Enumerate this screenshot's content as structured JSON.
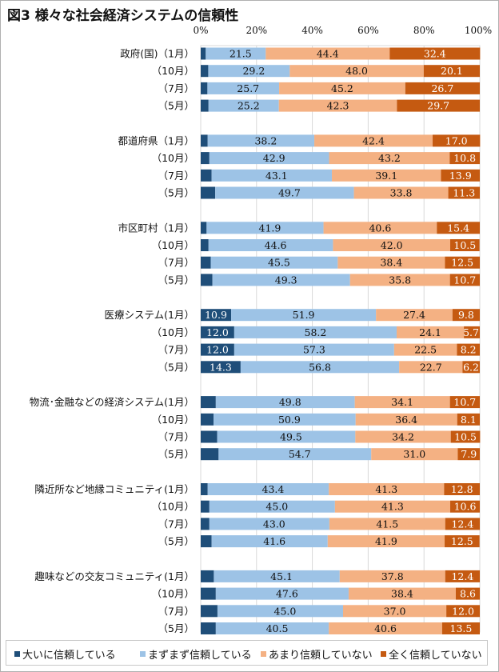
{
  "chart_data": {
    "type": "bar",
    "orientation": "horizontal-stacked-100",
    "title": "図3 様々な社会経済システムの信頼性",
    "xlim": [
      0,
      100
    ],
    "x_ticks": [
      "0%",
      "20%",
      "40%",
      "60%",
      "80%",
      "100%"
    ],
    "x_tick_values": [
      0,
      20,
      40,
      60,
      80,
      100
    ],
    "grid": true,
    "legend_position": "bottom",
    "series": [
      {
        "name": "大いに信頼している",
        "color": "#1f4e79"
      },
      {
        "name": "まずまず信頼している",
        "color": "#9dc3e6"
      },
      {
        "name": "あまり信頼していない",
        "color": "#f4b183"
      },
      {
        "name": "全く信頼していない",
        "color": "#c55a11"
      }
    ],
    "groups": [
      {
        "name": "政府(国)",
        "rows": [
          {
            "label": "政府(国)（1月）",
            "values": [
              1.8,
              21.5,
              44.4,
              32.4
            ]
          },
          {
            "label": "（10月）",
            "values": [
              2.7,
              29.2,
              48.0,
              20.1
            ]
          },
          {
            "label": "（7月）",
            "values": [
              2.4,
              25.7,
              45.2,
              26.7
            ]
          },
          {
            "label": "（5月）",
            "values": [
              2.8,
              25.2,
              42.3,
              29.7
            ]
          }
        ]
      },
      {
        "name": "都道府県",
        "rows": [
          {
            "label": "都道府県（1月）",
            "values": [
              2.5,
              38.2,
              42.4,
              17.0
            ]
          },
          {
            "label": "（10月）",
            "values": [
              3.1,
              42.9,
              43.2,
              10.8
            ]
          },
          {
            "label": "（7月）",
            "values": [
              3.9,
              43.1,
              39.1,
              13.9
            ]
          },
          {
            "label": "（5月）",
            "values": [
              5.2,
              49.7,
              33.8,
              11.3
            ]
          }
        ]
      },
      {
        "name": "市区町村",
        "rows": [
          {
            "label": "市区町村（1月）",
            "values": [
              2.1,
              41.9,
              40.6,
              15.4
            ]
          },
          {
            "label": "（10月）",
            "values": [
              2.8,
              44.6,
              42.0,
              10.5
            ]
          },
          {
            "label": "（7月）",
            "values": [
              3.6,
              45.5,
              38.4,
              12.5
            ]
          },
          {
            "label": "（5月）",
            "values": [
              4.2,
              49.3,
              35.8,
              10.7
            ]
          }
        ]
      },
      {
        "name": "医療システム",
        "rows": [
          {
            "label": "医療システム(1月）",
            "values": [
              10.9,
              51.9,
              27.4,
              9.8
            ]
          },
          {
            "label": "（10月）",
            "values": [
              12.0,
              58.2,
              24.1,
              5.7
            ]
          },
          {
            "label": "（7月）",
            "values": [
              12.0,
              57.3,
              22.5,
              8.2
            ]
          },
          {
            "label": "（5月）",
            "values": [
              14.3,
              56.8,
              22.7,
              6.2
            ]
          }
        ]
      },
      {
        "name": "物流･金融などの経済システム",
        "rows": [
          {
            "label": "物流･金融などの経済システム(1月）",
            "values": [
              5.4,
              49.8,
              34.1,
              10.7
            ]
          },
          {
            "label": "（10月）",
            "values": [
              4.6,
              50.9,
              36.4,
              8.1
            ]
          },
          {
            "label": "（7月）",
            "values": [
              5.9,
              49.5,
              34.2,
              10.5
            ]
          },
          {
            "label": "（5月）",
            "values": [
              6.4,
              54.7,
              31.0,
              7.9
            ]
          }
        ]
      },
      {
        "name": "隣近所など地縁コミュニティ",
        "rows": [
          {
            "label": "隣近所など地縁コミュニティ(1月）",
            "values": [
              2.5,
              43.4,
              41.3,
              12.8
            ]
          },
          {
            "label": "（10月）",
            "values": [
              3.1,
              45.0,
              41.3,
              10.6
            ]
          },
          {
            "label": "（7月）",
            "values": [
              3.1,
              43.0,
              41.5,
              12.4
            ]
          },
          {
            "label": "（5月）",
            "values": [
              3.9,
              41.6,
              41.9,
              12.5
            ]
          }
        ]
      },
      {
        "name": "趣味などの交友コミュニティ",
        "rows": [
          {
            "label": "趣味などの交友コミュニティ(1月）",
            "values": [
              4.7,
              45.1,
              37.8,
              12.4
            ]
          },
          {
            "label": "（10月）",
            "values": [
              5.4,
              47.6,
              38.4,
              8.6
            ]
          },
          {
            "label": "（7月）",
            "values": [
              6.0,
              45.0,
              37.0,
              12.0
            ]
          },
          {
            "label": "（5月）",
            "values": [
              5.4,
              40.5,
              40.6,
              13.5
            ]
          }
        ]
      }
    ]
  }
}
